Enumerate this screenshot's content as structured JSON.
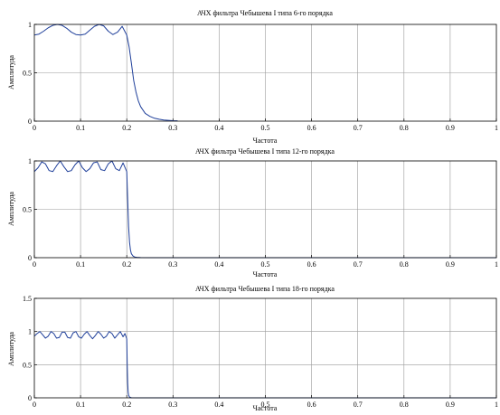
{
  "figure": {
    "colors": {
      "line": "#1f3f9a",
      "grid": "#9a9a9a",
      "axes": "#000000",
      "background": "#ffffff"
    }
  },
  "chart_data": [
    {
      "type": "line",
      "title": "АЧХ фильтра Чебышева I типа 6-го порядка",
      "xlabel": "Частота",
      "ylabel": "Амплитуда",
      "xlim": [
        0,
        1
      ],
      "ylim": [
        0,
        1
      ],
      "xticks": [
        "0",
        "0.1",
        "0.2",
        "0.3",
        "0.4",
        "0.5",
        "0.6",
        "0.7",
        "0.8",
        "0.9",
        "1"
      ],
      "yticks": [
        "0",
        "0.5",
        "1"
      ],
      "grid": true,
      "series": [
        {
          "x": [
            0,
            0.01,
            0.02,
            0.03,
            0.04,
            0.05,
            0.06,
            0.07,
            0.08,
            0.09,
            0.1,
            0.11,
            0.12,
            0.13,
            0.14,
            0.15,
            0.16,
            0.17,
            0.18,
            0.19,
            0.2,
            0.205,
            0.21,
            0.215,
            0.22,
            0.225,
            0.23,
            0.24,
            0.25,
            0.26,
            0.27,
            0.28,
            0.29,
            0.3,
            0.31
          ],
          "y": [
            0.89,
            0.9,
            0.93,
            0.965,
            0.99,
            1.0,
            0.99,
            0.96,
            0.92,
            0.895,
            0.89,
            0.9,
            0.94,
            0.98,
            1.0,
            0.985,
            0.93,
            0.895,
            0.92,
            0.98,
            0.89,
            0.77,
            0.6,
            0.42,
            0.3,
            0.21,
            0.15,
            0.08,
            0.05,
            0.03,
            0.02,
            0.012,
            0.008,
            0.005,
            0.003
          ]
        }
      ]
    },
    {
      "type": "line",
      "title": "АЧХ фильтра Чебышева I типа 12-го порядка",
      "xlabel": "Частота",
      "ylabel": "Амплитуда",
      "xlim": [
        0,
        1
      ],
      "ylim": [
        0,
        1
      ],
      "xticks": [
        "0",
        "0.1",
        "0.2",
        "0.3",
        "0.4",
        "0.5",
        "0.6",
        "0.7",
        "0.8",
        "0.9",
        "1"
      ],
      "yticks": [
        "0",
        "0.5",
        "1"
      ],
      "grid": true,
      "series": [
        {
          "x": [
            0,
            0.008,
            0.016,
            0.024,
            0.032,
            0.04,
            0.048,
            0.056,
            0.064,
            0.072,
            0.08,
            0.088,
            0.096,
            0.104,
            0.112,
            0.12,
            0.128,
            0.136,
            0.144,
            0.152,
            0.16,
            0.168,
            0.176,
            0.184,
            0.192,
            0.2,
            0.202,
            0.204,
            0.206,
            0.208,
            0.21,
            0.214,
            0.218,
            0.222,
            0.23,
            0.25,
            0.3,
            1
          ],
          "y": [
            0.89,
            0.93,
            0.99,
            0.97,
            0.9,
            0.89,
            0.95,
            1.0,
            0.94,
            0.89,
            0.9,
            0.96,
            1.0,
            0.93,
            0.89,
            0.92,
            0.98,
            0.99,
            0.91,
            0.9,
            0.97,
            1.0,
            0.92,
            0.9,
            0.98,
            0.89,
            0.6,
            0.32,
            0.16,
            0.08,
            0.04,
            0.015,
            0.006,
            0.003,
            0.001,
            0.0,
            0.0,
            0.0
          ]
        }
      ]
    },
    {
      "type": "line",
      "title": "АЧХ фильтра Чебышева I типа 18-го порядка",
      "xlabel": "Частота",
      "ylabel": "Амплитуда",
      "xlim": [
        0,
        1
      ],
      "ylim": [
        0,
        1.5
      ],
      "xticks": [
        "0",
        "0.1",
        "0.2",
        "0.3",
        "0.4",
        "0.5",
        "0.6",
        "0.7",
        "0.8",
        "0.9",
        "1"
      ],
      "yticks": [
        "0",
        "0.5",
        "1",
        "1.5"
      ],
      "grid": true,
      "series": [
        {
          "x": [
            0,
            0.006,
            0.012,
            0.018,
            0.024,
            0.03,
            0.036,
            0.042,
            0.048,
            0.054,
            0.06,
            0.066,
            0.072,
            0.078,
            0.084,
            0.09,
            0.096,
            0.102,
            0.108,
            0.114,
            0.12,
            0.126,
            0.132,
            0.138,
            0.144,
            0.15,
            0.156,
            0.162,
            0.168,
            0.174,
            0.18,
            0.186,
            0.192,
            0.196,
            0.2,
            0.201,
            0.202,
            0.203,
            0.204,
            0.206,
            0.21,
            0.22,
            1
          ],
          "y": [
            0.93,
            0.97,
            1.0,
            0.95,
            0.9,
            0.93,
            1.0,
            0.97,
            0.9,
            0.91,
            0.99,
            0.99,
            0.91,
            0.9,
            0.98,
            1.0,
            0.92,
            0.9,
            0.96,
            1.0,
            0.94,
            0.89,
            0.94,
            1.0,
            0.96,
            0.9,
            0.93,
            1.0,
            0.97,
            0.9,
            0.95,
            1.0,
            0.92,
            0.97,
            0.89,
            0.5,
            0.22,
            0.09,
            0.04,
            0.01,
            0.002,
            0.0,
            0.0
          ]
        }
      ]
    }
  ]
}
